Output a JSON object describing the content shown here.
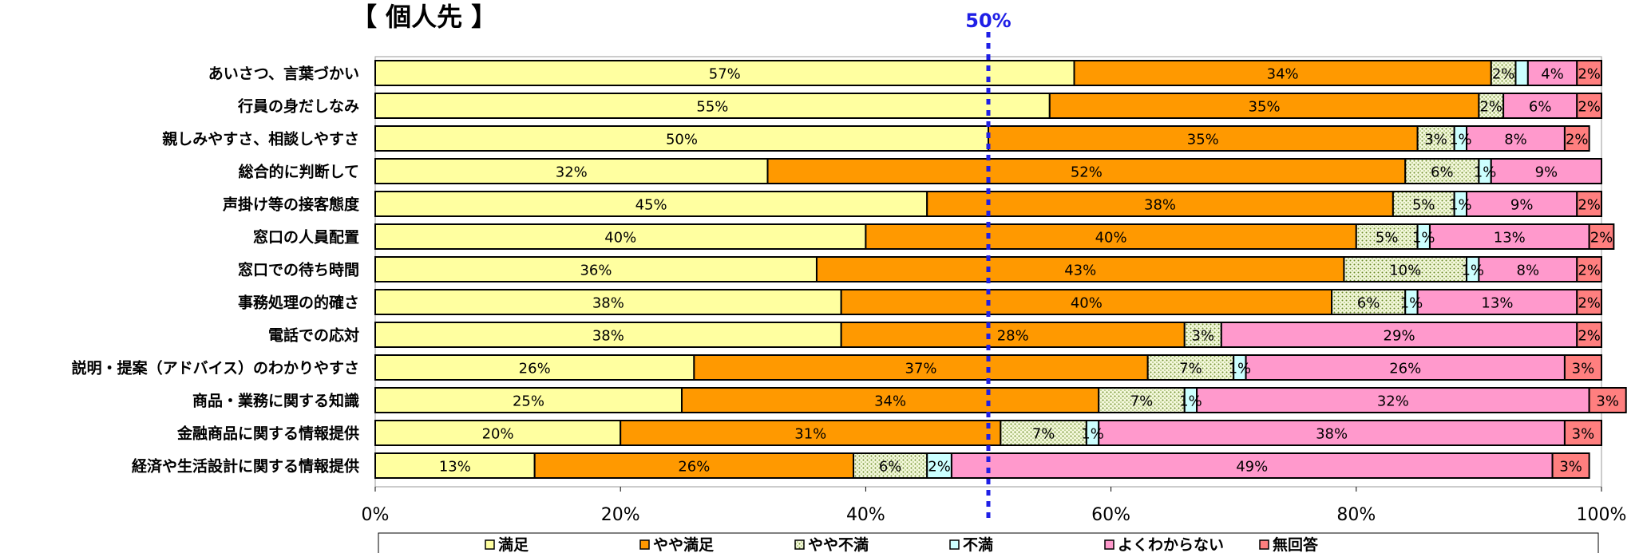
{
  "chart_data": {
    "type": "bar",
    "orientation": "horizontal",
    "stacked": true,
    "title": "【 個人先 】",
    "reference_line": {
      "value": 50,
      "label": "50%",
      "color": "#1f1fe6"
    },
    "categories": [
      "あいさつ、言葉づかい",
      "行員の身だしなみ",
      "親しみやすさ、相談しやすさ",
      "総合的に判断して",
      "声掛け等の接客態度",
      "窓口の人員配置",
      "窓口での待ち時間",
      "事務処理の的確さ",
      "電話での応対",
      "説明・提案（アドバイス）のわかりやすさ",
      "商品・業務に関する知識",
      "金融商品に関する情報提供",
      "経済や生活設計に関する情報提供"
    ],
    "series": [
      {
        "name": "満足",
        "color": "#ffffa0",
        "pattern": "solid",
        "values": [
          57,
          55,
          50,
          32,
          45,
          40,
          36,
          38,
          38,
          26,
          25,
          20,
          13
        ]
      },
      {
        "name": "やや満足",
        "color": "#ff9900",
        "pattern": "solid",
        "values": [
          34,
          35,
          35,
          52,
          38,
          40,
          43,
          40,
          28,
          37,
          34,
          31,
          26
        ]
      },
      {
        "name": "やや不満",
        "color": "#e6f0c0",
        "pattern": "dots",
        "values": [
          2,
          2,
          3,
          6,
          5,
          5,
          10,
          6,
          3,
          7,
          7,
          7,
          6
        ]
      },
      {
        "name": "不満",
        "color": "#ccffff",
        "pattern": "solid",
        "values": [
          1,
          0,
          1,
          1,
          1,
          1,
          1,
          1,
          0,
          1,
          1,
          1,
          2
        ]
      },
      {
        "name": "よくわからない",
        "color": "#ff99cc",
        "pattern": "solid",
        "values": [
          4,
          6,
          8,
          9,
          9,
          13,
          8,
          13,
          29,
          26,
          32,
          38,
          49
        ]
      },
      {
        "name": "無回答",
        "color": "#ff7f7f",
        "pattern": "solid",
        "values": [
          2,
          2,
          2,
          0,
          2,
          2,
          2,
          2,
          2,
          3,
          3,
          3,
          3
        ]
      }
    ],
    "labels": [
      [
        "57%",
        "34%",
        "2%",
        "",
        "4%",
        "2%"
      ],
      [
        "55%",
        "35%",
        "2%",
        "",
        "6%",
        "2%"
      ],
      [
        "50%",
        "35%",
        "3%",
        "1%",
        "8%",
        "2%"
      ],
      [
        "32%",
        "52%",
        "6%",
        "1%",
        "9%",
        ""
      ],
      [
        "45%",
        "38%",
        "5%",
        "1%",
        "9%",
        "2%"
      ],
      [
        "40%",
        "40%",
        "5%",
        "1%",
        "13%",
        "2%"
      ],
      [
        "36%",
        "43%",
        "10%",
        "1%",
        "8%",
        "2%"
      ],
      [
        "38%",
        "40%",
        "6%",
        "1%",
        "13%",
        "2%"
      ],
      [
        "38%",
        "28%",
        "3%",
        "",
        "29%",
        "2%"
      ],
      [
        "26%",
        "37%",
        "7%",
        "1%",
        "26%",
        "3%"
      ],
      [
        "25%",
        "34%",
        "7%",
        "1%",
        "32%",
        "3%"
      ],
      [
        "20%",
        "31%",
        "7%",
        "1%",
        "38%",
        "3%"
      ],
      [
        "13%",
        "26%",
        "6%",
        "2%",
        "49%",
        "3%"
      ]
    ],
    "xlim": [
      0,
      100
    ],
    "xticks": [
      "0%",
      "20%",
      "40%",
      "60%",
      "80%",
      "100%"
    ],
    "xlabel": "",
    "ylabel": "",
    "grid": false,
    "legend": "bottom"
  }
}
